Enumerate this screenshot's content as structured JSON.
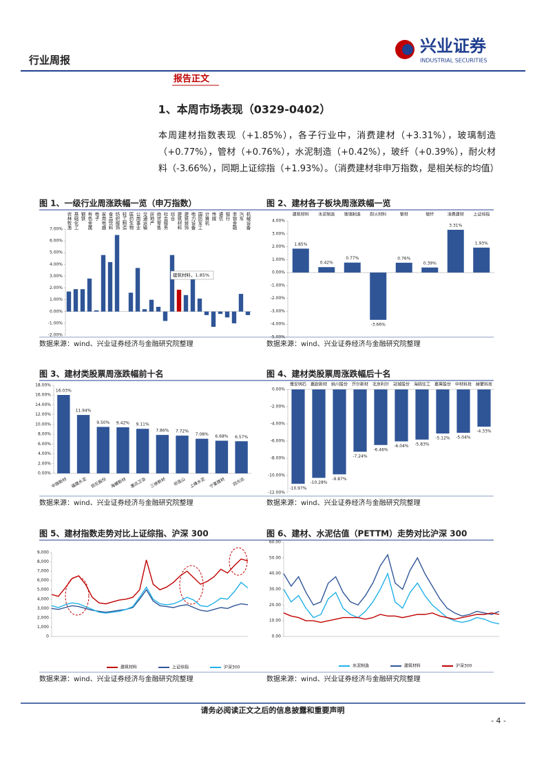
{
  "header": {
    "report_type": "行业周报",
    "logo_name": "兴业证券",
    "logo_sub": "INDUSTRIAL SECURITIES"
  },
  "section_label": "报告正文",
  "heading": "1、本周市场表现（0329-0402）",
  "paragraph": "本周建材指数表现（+1.85%），各子行业中，消费建材（+3.31%），玻璃制造（+0.77%），管材（+0.76%），水泥制造（+0.42%），玻纤（+0.39%），耐火材料（-3.66%），同期上证综指（+1.93%）。（消费建材非申万指数，是相关标的均值）",
  "chart_data": [
    {
      "type": "bar",
      "title": "图 1、一级行业周涨跌幅一览（申万指数）",
      "source": "数据来源：wind、兴业证券经济与金融研究院整理",
      "categories": [
        "农林牧渔",
        "基础化工",
        "钢铁",
        "有色金属",
        "电子",
        "家用电器",
        "食品饮料",
        "纺织服饰",
        "轻工制造",
        "医药生物",
        "公用事业",
        "交通运输",
        "房地产",
        "商贸零售",
        "社会服务",
        "综合",
        "建筑材料",
        "建筑装饰",
        "电力设备",
        "国防军工",
        "计算机",
        "传媒",
        "通信",
        "银行",
        "非银金融",
        "汽车",
        "机械设备"
      ],
      "values": [
        1.7,
        1.9,
        1.9,
        2.8,
        0.1,
        4.8,
        4.2,
        6.5,
        0.0,
        1.6,
        3.7,
        0.2,
        1.0,
        0.4,
        -0.8,
        4.8,
        1.85,
        1.4,
        3.1,
        1.1,
        -0.3,
        -1.3,
        -0.2,
        -0.5,
        -1.0,
        1.5,
        -0.3
      ],
      "colors": [
        "#2f5597",
        "#2f5597",
        "#2f5597",
        "#2f5597",
        "#2f5597",
        "#2f5597",
        "#2f5597",
        "#2f5597",
        "#2f5597",
        "#2f5597",
        "#2f5597",
        "#2f5597",
        "#2f5597",
        "#2f5597",
        "#2f5597",
        "#2f5597",
        "#c00000",
        "#2f5597",
        "#2f5597",
        "#2f5597",
        "#2f5597",
        "#2f5597",
        "#2f5597",
        "#2f5597",
        "#2f5597",
        "#2f5597",
        "#2f5597"
      ],
      "annotation": "建筑材料，1.85%",
      "ylim": [
        -2,
        7
      ],
      "yticks": [
        {
          "value": -2,
          "label": "-2.00%"
        },
        {
          "value": -1,
          "label": "-1.00%"
        },
        {
          "value": 0,
          "label": "0.00%"
        },
        {
          "value": 1,
          "label": "1.00%"
        },
        {
          "value": 2,
          "label": "2.00%"
        },
        {
          "value": 3,
          "label": "3.00%"
        },
        {
          "value": 4,
          "label": "4.00%"
        },
        {
          "value": 5,
          "label": "5.00%"
        },
        {
          "value": 6,
          "label": "6.00%"
        },
        {
          "value": 7,
          "label": "7.00%"
        }
      ]
    },
    {
      "type": "bar",
      "title": "图 2、建材各子板块周涨跌幅一览",
      "source": "数据来源：wind、兴业证券经济与金融研究院整理",
      "categories": [
        "建筑材料",
        "水泥制造",
        "玻璃制造",
        "耐火材料",
        "管材",
        "玻纤",
        "消费建材",
        "上证综指"
      ],
      "values": [
        1.85,
        0.42,
        0.77,
        -3.66,
        0.76,
        0.39,
        3.31,
        1.93
      ],
      "value_labels": [
        "1.85%",
        "0.42%",
        "0.77%",
        "-3.66%",
        "0.76%",
        "0.39%",
        "3.31%",
        "1.93%"
      ],
      "color": "#2f5597",
      "ylim": [
        -5,
        4
      ],
      "yticks": [
        {
          "value": -5,
          "label": "-5.00%"
        },
        {
          "value": -4,
          "label": "-4.00%"
        },
        {
          "value": -3,
          "label": "-3.00%"
        },
        {
          "value": -2,
          "label": "-2.00%"
        },
        {
          "value": -1,
          "label": "-1.00%"
        },
        {
          "value": 0,
          "label": "0.00%"
        },
        {
          "value": 1,
          "label": "1.00%"
        },
        {
          "value": 2,
          "label": "2.00%"
        },
        {
          "value": 3,
          "label": "3.00%"
        },
        {
          "value": 4,
          "label": "4.00%"
        }
      ]
    },
    {
      "type": "bar",
      "title": "图 3、建材类股票周涨跌幅前十名",
      "source": "数据来源：wind、兴业证券经济与金融研究院整理",
      "categories": [
        "中旗新材",
        "福建水泥",
        "凯伦股份",
        "海螺新材",
        "惠达卫浴",
        "三峡新材",
        "祁连山",
        "上峰水泥",
        "宁夏建材",
        "四方达"
      ],
      "values": [
        16.03,
        11.94,
        9.5,
        9.42,
        9.11,
        7.86,
        7.72,
        7.08,
        6.68,
        6.57
      ],
      "value_labels": [
        "16.03%",
        "11.94%",
        "9.50%",
        "9.42%",
        "9.11%",
        "7.86%",
        "7.72%",
        "7.08%",
        "6.68%",
        "6.57%"
      ],
      "color": "#2f5597",
      "ylim": [
        0,
        18
      ],
      "yticks": [
        {
          "value": 0,
          "label": "0.00%"
        },
        {
          "value": 2,
          "label": "2.00%"
        },
        {
          "value": 4,
          "label": "4.00%"
        },
        {
          "value": 6,
          "label": "6.00%"
        },
        {
          "value": 8,
          "label": "8.00%"
        },
        {
          "value": 10,
          "label": "10.00%"
        },
        {
          "value": 12,
          "label": "12.00%"
        },
        {
          "value": 14,
          "label": "14.00%"
        },
        {
          "value": 16,
          "label": "16.00%"
        },
        {
          "value": 18,
          "label": "18.00%"
        }
      ]
    },
    {
      "type": "bar",
      "title": "图 4、建材类股票周涨跌幅后十名",
      "source": "数据来源：wind、兴业证券经济与金融研究院整理",
      "categories": [
        "雅安明石",
        "嘉欧新材",
        "纳川股份",
        "开尔新材",
        "北京利尔",
        "冠城股份",
        "海鸥住工",
        "嘉寓股份",
        "中材科技",
        "赫蒙科技"
      ],
      "values": [
        -10.97,
        -10.28,
        -9.87,
        -7.24,
        -6.46,
        -6.04,
        -5.83,
        -5.12,
        -5.04,
        -4.33
      ],
      "value_labels": [
        "-10.97%",
        "-10.28%",
        "-9.87%",
        "-7.24%",
        "-6.46%",
        "-6.04%",
        "-5.83%",
        "-5.12%",
        "-5.04%",
        "-4.33%"
      ],
      "color": "#2f5597",
      "ylim": [
        -12,
        0
      ],
      "yticks": [
        {
          "value": -12,
          "label": "-12.00%"
        },
        {
          "value": -10,
          "label": "-10.00%"
        },
        {
          "value": -8,
          "label": "-8.00%"
        },
        {
          "value": -6,
          "label": "-6.00%"
        },
        {
          "value": -4,
          "label": "-4.00%"
        },
        {
          "value": -2,
          "label": "-2.00%"
        },
        {
          "value": 0,
          "label": "0.00%"
        }
      ]
    },
    {
      "type": "line",
      "title": "图 5、建材指数走势对比上证综指、沪深 300",
      "source": "数据来源：wind、兴业证券经济与金融研究院整理",
      "series": [
        {
          "name": "建筑材料",
          "color": "#c00000",
          "values": [
            4500,
            4300,
            5200,
            6200,
            6500,
            5600,
            4200,
            3600,
            3500,
            3700,
            3900,
            4000,
            4200,
            5000,
            8200,
            5600,
            5000,
            5300,
            5800,
            6500,
            7000,
            6300,
            5600,
            5900,
            6400,
            7200,
            6800,
            7600,
            8300,
            8100
          ]
        },
        {
          "name": "上证综指",
          "color": "#2f5597",
          "values": [
            3000,
            2900,
            3100,
            3300,
            3200,
            3000,
            2800,
            2700,
            2600,
            2700,
            2800,
            2900,
            3100,
            4000,
            5000,
            3800,
            3300,
            3200,
            3100,
            3300,
            3400,
            3100,
            2800,
            2700,
            2900,
            3100,
            3000,
            3300,
            3500,
            3400
          ]
        },
        {
          "name": "沪深300",
          "color": "#1fb0e8",
          "values": [
            3300,
            3100,
            3400,
            3600,
            3500,
            3200,
            2900,
            2600,
            2500,
            2600,
            2700,
            2900,
            3200,
            4200,
            5300,
            4000,
            3500,
            3400,
            3500,
            3800,
            4200,
            3900,
            3300,
            3200,
            3600,
            4100,
            4000,
            4800,
            5800,
            5200
          ]
        }
      ],
      "ylim": [
        0,
        9000
      ],
      "yticks": [
        0,
        {
          "value": 1000,
          "label": "1,000"
        },
        {
          "value": 2000,
          "label": "2,000"
        },
        {
          "value": 3000,
          "label": "3,000"
        },
        {
          "value": 4000,
          "label": "4,000"
        },
        {
          "value": 5000,
          "label": "5,000"
        },
        {
          "value": 6000,
          "label": "6,000"
        },
        {
          "value": 7000,
          "label": "7,000"
        },
        {
          "value": 8000,
          "label": "8,000"
        },
        {
          "value": 9000,
          "label": "9,000"
        }
      ]
    },
    {
      "type": "line",
      "title": "图 6、建材、水泥估值（PETTM）走势对比沪深 300",
      "source": "数据来源：wind、兴业证券经济与金融研究院整理",
      "series": [
        {
          "name": "水泥制造",
          "color": "#1fb0e8",
          "values": [
            30,
            22,
            26,
            18,
            12,
            14,
            24,
            28,
            18,
            14,
            12,
            16,
            22,
            30,
            40,
            22,
            18,
            28,
            34,
            26,
            20,
            16,
            12,
            10,
            9,
            10,
            12,
            11,
            9,
            8
          ]
        },
        {
          "name": "建筑材料",
          "color": "#2f5597",
          "values": [
            40,
            32,
            38,
            28,
            20,
            22,
            34,
            38,
            28,
            22,
            20,
            26,
            34,
            45,
            52,
            34,
            30,
            42,
            50,
            40,
            32,
            24,
            18,
            15,
            13,
            14,
            16,
            15,
            14,
            16
          ]
        },
        {
          "name": "沪深300",
          "color": "#c00000",
          "values": [
            15,
            13,
            12,
            10,
            10,
            9,
            10,
            11,
            12,
            12,
            12,
            11,
            12,
            14,
            13,
            13,
            12,
            13,
            14,
            14,
            15,
            13,
            12,
            11,
            12,
            13,
            14,
            14,
            15,
            14
          ]
        }
      ],
      "ylim": [
        0,
        60
      ],
      "yticks": [
        {
          "value": 0,
          "label": "0.00"
        },
        {
          "value": 10,
          "label": "10.00"
        },
        {
          "value": 20,
          "label": "20.00"
        },
        {
          "value": 30,
          "label": "30.00"
        },
        {
          "value": 40,
          "label": "40.00"
        },
        {
          "value": 50,
          "label": "50.00"
        },
        {
          "value": 60,
          "label": "60.00"
        }
      ]
    }
  ],
  "footer": {
    "disclaimer": "请务必阅读正文之后的信息披露和重要声明",
    "page": "- 4 -"
  }
}
